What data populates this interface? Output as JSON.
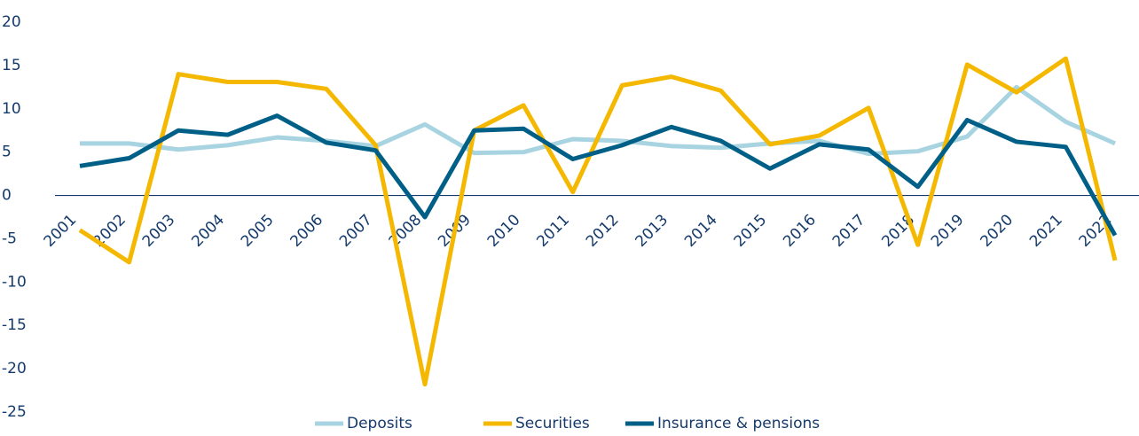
{
  "chart_data": {
    "type": "line",
    "categories": [
      "2001",
      "2002",
      "2003",
      "2004",
      "2005",
      "2006",
      "2007",
      "2008",
      "2009",
      "2010",
      "2011",
      "2012",
      "2013",
      "2014",
      "2015",
      "2016",
      "2017",
      "2018",
      "2019",
      "2020",
      "2021",
      "2022"
    ],
    "series": [
      {
        "name": "Deposits",
        "color": "#a8d4e1",
        "values": [
          6,
          6,
          5.3,
          5.8,
          6.7,
          6.3,
          5.7,
          8.2,
          4.9,
          5,
          6.5,
          6.3,
          5.7,
          5.5,
          6,
          6.3,
          4.8,
          5.1,
          6.8,
          12.5,
          8.5,
          6
        ]
      },
      {
        "name": "Securities",
        "color": "#f5b800",
        "values": [
          -4,
          -7.7,
          14,
          13.1,
          13.1,
          12.3,
          5.8,
          -21.8,
          7.5,
          10.4,
          0.4,
          12.7,
          13.7,
          12.1,
          5.9,
          6.9,
          10.1,
          -5.7,
          15.1,
          11.9,
          15.8,
          -7.5
        ]
      },
      {
        "name": "Insurance & pensions",
        "color": "#005f87",
        "values": [
          3.4,
          4.3,
          7.5,
          7,
          9.2,
          6.1,
          5.2,
          -2.5,
          7.5,
          7.7,
          4.2,
          5.8,
          7.9,
          6.3,
          3.1,
          5.9,
          5.3,
          1,
          8.7,
          6.2,
          5.6,
          -4.6
        ]
      }
    ],
    "ylim": [
      -25,
      20
    ],
    "yticks": [
      20,
      15,
      10,
      5,
      0,
      -5,
      -10,
      -15,
      -20,
      -25
    ],
    "grid": false,
    "legend": "bottom"
  }
}
